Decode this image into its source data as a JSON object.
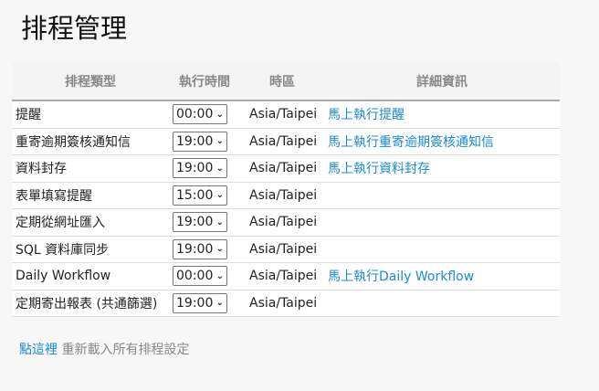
{
  "title": "排程管理",
  "headers": [
    "排程類型",
    "執行時間",
    "時區",
    "詳細資訊"
  ],
  "rows": [
    {
      "type": "提醒",
      "time": "00:00",
      "tz": "Asia/Taipei",
      "link": "馬上執行提醒"
    },
    {
      "type": "重寄逾期簽核通知信",
      "time": "19:00",
      "tz": "Asia/Taipei",
      "link": "馬上執行重寄逾期簽核通知信"
    },
    {
      "type": "資料封存",
      "time": "19:00",
      "tz": "Asia/Taipei",
      "link": "馬上執行資料封存"
    },
    {
      "type": "表單填寫提醒",
      "time": "15:00",
      "tz": "Asia/Taipei",
      "link": ""
    },
    {
      "type": "定期從網址匯入",
      "time": "19:00",
      "tz": "Asia/Taipei",
      "link": ""
    },
    {
      "type": "SQL 資料庫同步",
      "time": "19:00",
      "tz": "Asia/Taipei",
      "link": ""
    },
    {
      "type": "Daily Workflow",
      "time": "00:00",
      "tz": "Asia/Taipei",
      "link": "馬上執行Daily Workflow"
    },
    {
      "type": "定期寄出報表 (共通篩選)",
      "time": "19:00",
      "tz": "Asia/Taipei",
      "link": ""
    }
  ],
  "footer": {
    "link": "點這裡",
    "text": "重新載入所有排程設定"
  }
}
